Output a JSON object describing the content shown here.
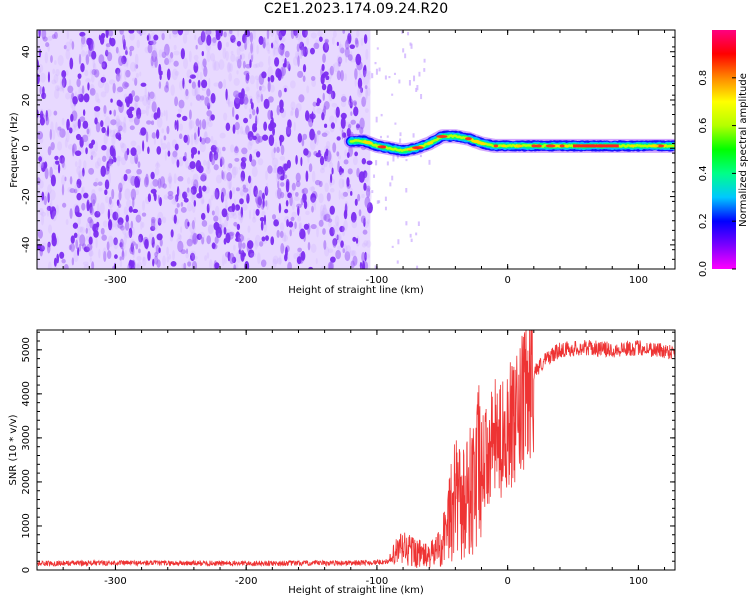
{
  "title": "C2E1.2023.174.09.24.R20",
  "colors": {
    "snr_line": "#ee3333",
    "spectrogram_noise": "#7b2cf0",
    "colorbar_stops": [
      "#ff00ff",
      "#7a00ff",
      "#0000ff",
      "#00c8ff",
      "#00ff88",
      "#00ff00",
      "#b4ff00",
      "#ffff00",
      "#ff8800",
      "#ff0000",
      "#ff0080"
    ]
  },
  "chart_data": [
    {
      "type": "heatmap",
      "title": "",
      "xlabel": "Height of straight line (km)",
      "ylabel": "Frequency (Hz)",
      "xlim": [
        -360,
        128
      ],
      "ylim": [
        -50,
        49
      ],
      "xticks": [
        "-300",
        "-200",
        "-100",
        "0",
        "100"
      ],
      "yticks": [
        "-40",
        "-20",
        "0",
        "20",
        "40"
      ],
      "colorbar": {
        "label": "Normalized spectral amplitude",
        "range": [
          0,
          1
        ],
        "ticks": [
          "0.0",
          "0.2",
          "0.4",
          "0.6",
          "0.8"
        ]
      },
      "signal_ridge": {
        "x": [
          -120,
          -110,
          -100,
          -90,
          -80,
          -70,
          -60,
          -50,
          -40,
          -30,
          -20,
          -10,
          0,
          20,
          40,
          60,
          80,
          100,
          128
        ],
        "freq_hz": [
          3,
          3,
          1,
          0,
          -1,
          0,
          2,
          5,
          5,
          4,
          2,
          1,
          1,
          1,
          1,
          1,
          1,
          1,
          1
        ]
      },
      "noise_region_x": [
        -360,
        -105
      ],
      "grid": false
    },
    {
      "type": "line",
      "title": "",
      "xlabel": "Height of straight line (km)",
      "ylabel": "SNR (10 * v/v)",
      "xlim": [
        -360,
        128
      ],
      "ylim": [
        0,
        5450
      ],
      "xticks": [
        "-300",
        "-200",
        "-100",
        "0",
        "100"
      ],
      "yticks": [
        "0",
        "1000",
        "2000",
        "3000",
        "4000",
        "5000"
      ],
      "grid": false,
      "series": [
        {
          "x": [
            -360,
            -300,
            -200,
            -150,
            -100,
            -90,
            -85,
            -80,
            -70,
            -60,
            -50,
            -45,
            -40,
            -35,
            -30,
            -25,
            -20,
            -15,
            -10,
            -5,
            0,
            5,
            10,
            15,
            20,
            30,
            40,
            60,
            80,
            100,
            128
          ],
          "values": [
            150,
            160,
            150,
            155,
            170,
            200,
            400,
            500,
            400,
            300,
            600,
            1200,
            1600,
            1400,
            1800,
            2000,
            2400,
            2600,
            3000,
            2900,
            3400,
            3200,
            3600,
            4000,
            4500,
            4800,
            5000,
            5050,
            5000,
            5050,
            4950
          ]
        }
      ]
    }
  ]
}
